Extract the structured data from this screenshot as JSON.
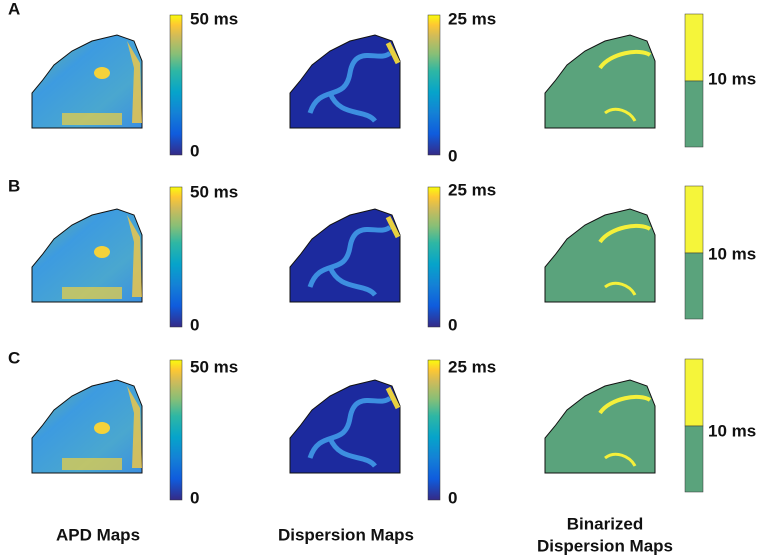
{
  "rows": [
    {
      "label": "A",
      "apd_colorbar": {
        "max": "50 ms",
        "min": "0"
      },
      "dispersion_colorbar": {
        "max": "25 ms",
        "min": "0"
      },
      "binarized_colorbar": {
        "threshold": "10 ms"
      }
    },
    {
      "label": "B",
      "apd_colorbar": {
        "max": "50 ms",
        "min": "0"
      },
      "dispersion_colorbar": {
        "max": "25 ms",
        "min": "0"
      },
      "binarized_colorbar": {
        "threshold": "10 ms"
      }
    },
    {
      "label": "C",
      "apd_colorbar": {
        "max": "50 ms",
        "min": "0"
      },
      "dispersion_colorbar": {
        "max": "25 ms",
        "min": "0"
      },
      "binarized_colorbar": {
        "threshold": "10 ms"
      }
    }
  ],
  "columns": {
    "apd": "APD Maps",
    "dispersion": "Dispersion Maps",
    "binarized": {
      "line1": "Binarized",
      "line2": "Dispersion Maps"
    }
  }
}
